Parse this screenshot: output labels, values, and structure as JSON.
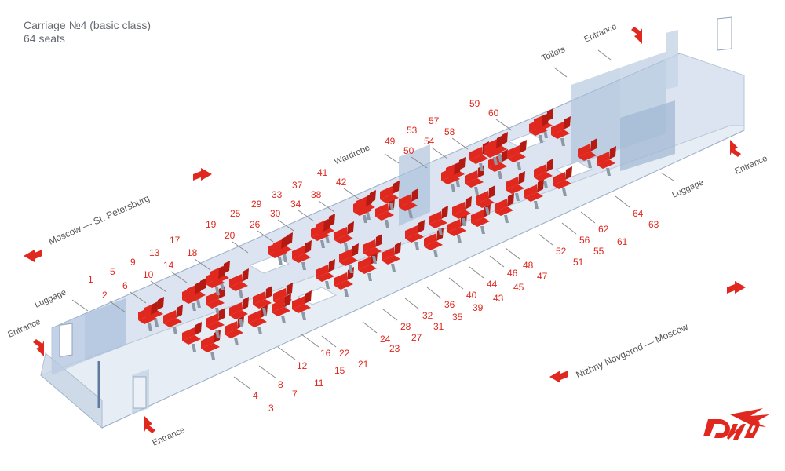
{
  "header": {
    "title": "Carriage №4  (basic class)",
    "subtitle": "64 seats"
  },
  "labels": {
    "luggage_left": "Luggage",
    "luggage_right": "Luggage",
    "entrance_left_end": "Entrance",
    "entrance_bottom_left": "Entrance",
    "entrance_top_right": "Entrance",
    "entrance_right_end": "Entrance",
    "toilets": "Toilets",
    "wardrobe": "Wardrobe",
    "direction_top": "Moscow — St. Petersburg",
    "direction_bottom": "Nizhny Novgorod — Moscow"
  },
  "seats": {
    "far_upper": [
      "1",
      "5",
      "9",
      "13",
      "17",
      "19",
      "25",
      "29",
      "33",
      "37",
      "41",
      "49",
      "53",
      "57",
      "59"
    ],
    "far_lower": [
      "2",
      "6",
      "10",
      "14",
      "18",
      "20",
      "26",
      "30",
      "34",
      "38",
      "42",
      "50",
      "54",
      "58",
      "60"
    ],
    "near_upper": [
      "22",
      "24",
      "28",
      "32",
      "36",
      "40",
      "44",
      "46",
      "48",
      "52",
      "56",
      "62",
      "64"
    ],
    "near_lower": [
      "21",
      "23",
      "27",
      "31",
      "35",
      "39",
      "43",
      "45",
      "47",
      "51",
      "55",
      "61",
      "63"
    ],
    "front_upper": [
      "4",
      "8",
      "12",
      "16"
    ],
    "front_lower": [
      "3",
      "7",
      "11",
      "15"
    ]
  },
  "colors": {
    "seat": "#e0281e",
    "seat_dark": "#b51a12",
    "glass": "#b6c8df",
    "floor": "#e4ebf4",
    "text": "#555555",
    "accent": "#e0281e"
  },
  "icons": {
    "logo": "rzd-logo",
    "arrow": "red-arrow-icon"
  }
}
